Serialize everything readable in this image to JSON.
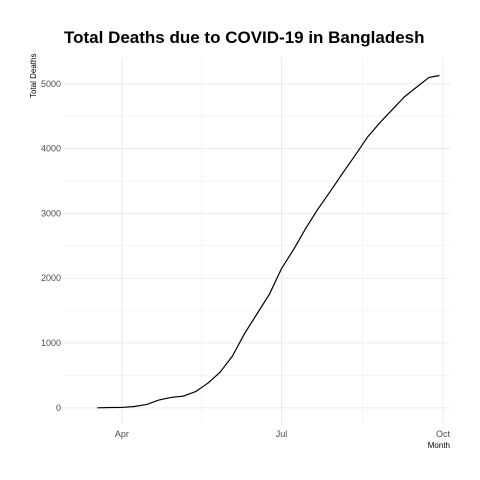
{
  "chart_data": {
    "type": "line",
    "title": "Total Deaths due to COVID-19 in Bangladesh",
    "xlabel": "Month",
    "ylabel": "Total Deaths",
    "x_ticks": [
      {
        "label": "Apr",
        "date": "2020-04-01"
      },
      {
        "label": "Jul",
        "date": "2020-07-01"
      },
      {
        "label": "Oct",
        "date": "2020-10-01"
      }
    ],
    "y_ticks": [
      {
        "label": "0",
        "value": 0
      },
      {
        "label": "1000",
        "value": 1000
      },
      {
        "label": "2000",
        "value": 2000
      },
      {
        "label": "3000",
        "value": 3000
      },
      {
        "label": "4000",
        "value": 4000
      },
      {
        "label": "5000",
        "value": 5000
      }
    ],
    "xlim": [
      "2020-02-28",
      "2020-10-05"
    ],
    "ylim": [
      -250,
      5400
    ],
    "grid": true,
    "series": [
      {
        "x": [
          "2020-03-18",
          "2020-03-25",
          "2020-04-01",
          "2020-04-08",
          "2020-04-15",
          "2020-04-22",
          "2020-04-29",
          "2020-05-06",
          "2020-05-13",
          "2020-05-20",
          "2020-05-27",
          "2020-06-03",
          "2020-06-10",
          "2020-06-17",
          "2020-06-24",
          "2020-07-01",
          "2020-07-08",
          "2020-07-15",
          "2020-07-22",
          "2020-07-29",
          "2020-08-05",
          "2020-08-12",
          "2020-08-19",
          "2020-08-26",
          "2020-09-02",
          "2020-09-09",
          "2020-09-16",
          "2020-09-23",
          "2020-09-29"
        ],
        "y": [
          0,
          5,
          6,
          20,
          50,
          120,
          160,
          180,
          250,
          380,
          550,
          800,
          1150,
          1450,
          1750,
          2150,
          2450,
          2780,
          3080,
          3350,
          3630,
          3900,
          4180,
          4400,
          4600,
          4800,
          4950,
          5100,
          5130
        ],
        "color": "#000000"
      }
    ]
  }
}
